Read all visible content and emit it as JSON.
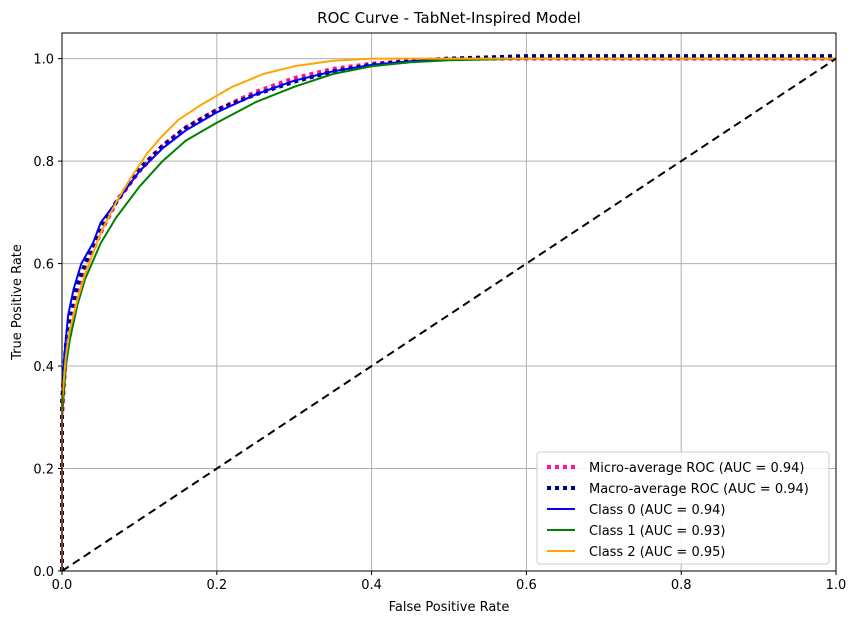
{
  "chart_data": {
    "type": "line",
    "title": "ROC Curve - TabNet-Inspired Model",
    "xlabel": "False Positive Rate",
    "ylabel": "True Positive Rate",
    "xlim": [
      0.0,
      1.0
    ],
    "ylim": [
      0.0,
      1.05
    ],
    "xticks": [
      "0.0",
      "0.2",
      "0.4",
      "0.6",
      "0.8",
      "1.0"
    ],
    "yticks": [
      "0.0",
      "0.2",
      "0.4",
      "0.6",
      "0.8",
      "1.0"
    ],
    "grid": true,
    "legend_position": "lower-right",
    "series": [
      {
        "name": "Micro-average ROC (AUC = 0.94)",
        "color": "#ff1493",
        "style": "dotted",
        "x": [
          0.0,
          0.0,
          0.005,
          0.01,
          0.02,
          0.03,
          0.05,
          0.07,
          0.1,
          0.13,
          0.16,
          0.2,
          0.25,
          0.3,
          0.35,
          0.4,
          0.45,
          0.5,
          0.6,
          0.8,
          1.0
        ],
        "y": [
          0.0,
          0.3,
          0.42,
          0.48,
          0.54,
          0.59,
          0.66,
          0.72,
          0.78,
          0.83,
          0.866,
          0.9,
          0.935,
          0.962,
          0.98,
          0.99,
          0.996,
          1.0,
          1.0,
          1.0,
          1.0
        ]
      },
      {
        "name": "Macro-average ROC (AUC = 0.94)",
        "color": "#000080",
        "style": "dotted",
        "x": [
          0.0,
          0.0,
          0.005,
          0.01,
          0.02,
          0.03,
          0.05,
          0.07,
          0.1,
          0.13,
          0.16,
          0.2,
          0.25,
          0.3,
          0.35,
          0.4,
          0.45,
          0.5,
          0.6,
          0.8,
          1.0
        ],
        "y": [
          0.0,
          0.33,
          0.44,
          0.5,
          0.56,
          0.6,
          0.67,
          0.72,
          0.785,
          0.83,
          0.865,
          0.9,
          0.93,
          0.955,
          0.975,
          0.988,
          0.995,
          1.0,
          1.005,
          1.005,
          1.005
        ]
      },
      {
        "name": "Class 0 (AUC = 0.94)",
        "color": "#0000ff",
        "style": "solid",
        "x": [
          0.0,
          0.0,
          0.003,
          0.008,
          0.015,
          0.025,
          0.04,
          0.05,
          0.07,
          0.1,
          0.13,
          0.16,
          0.2,
          0.25,
          0.3,
          0.35,
          0.4,
          0.45,
          0.5,
          0.6,
          0.8,
          1.0
        ],
        "y": [
          0.0,
          0.3,
          0.42,
          0.5,
          0.55,
          0.6,
          0.64,
          0.68,
          0.72,
          0.78,
          0.825,
          0.86,
          0.895,
          0.93,
          0.957,
          0.975,
          0.988,
          0.995,
          1.0,
          1.0,
          1.0,
          1.0
        ]
      },
      {
        "name": "Class 1 (AUC = 0.93)",
        "color": "#008000",
        "style": "solid",
        "x": [
          0.0,
          0.0,
          0.005,
          0.01,
          0.02,
          0.03,
          0.05,
          0.07,
          0.1,
          0.13,
          0.16,
          0.2,
          0.25,
          0.3,
          0.35,
          0.4,
          0.45,
          0.5,
          0.6,
          0.8,
          1.0
        ],
        "y": [
          0.0,
          0.3,
          0.4,
          0.45,
          0.52,
          0.57,
          0.64,
          0.69,
          0.75,
          0.8,
          0.84,
          0.875,
          0.915,
          0.945,
          0.97,
          0.985,
          0.993,
          0.997,
          1.0,
          1.0,
          1.0
        ]
      },
      {
        "name": "Class 2 (AUC = 0.95)",
        "color": "#ffa500",
        "style": "solid",
        "x": [
          0.0,
          0.0,
          0.005,
          0.01,
          0.02,
          0.03,
          0.05,
          0.07,
          0.09,
          0.11,
          0.13,
          0.15,
          0.18,
          0.22,
          0.26,
          0.3,
          0.35,
          0.4,
          0.45,
          0.5,
          0.6,
          0.8,
          1.0
        ],
        "y": [
          0.0,
          0.33,
          0.42,
          0.47,
          0.53,
          0.58,
          0.66,
          0.72,
          0.77,
          0.815,
          0.85,
          0.88,
          0.91,
          0.945,
          0.97,
          0.985,
          0.996,
          1.0,
          1.0,
          1.0,
          1.0,
          1.0,
          1.0
        ]
      },
      {
        "name": "",
        "color": "#000000",
        "style": "dashed",
        "x": [
          0.0,
          1.0
        ],
        "y": [
          0.0,
          1.0
        ]
      }
    ]
  }
}
